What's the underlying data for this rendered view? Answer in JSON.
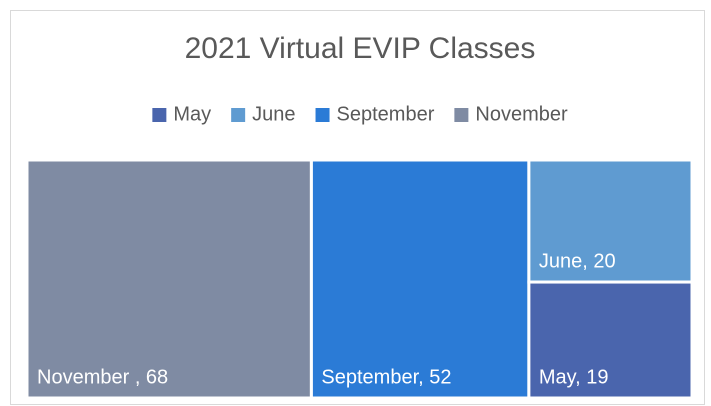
{
  "chart_data": {
    "type": "treemap",
    "title": "2021 Virtual EVIP Classes",
    "categories": [
      "May",
      "June",
      "September",
      "November"
    ],
    "values": [
      19,
      20,
      52,
      68
    ],
    "value_labels": [
      "May, 19",
      "June, 20",
      "September, 52",
      "November , 68"
    ],
    "colors": [
      "#4a65ad",
      "#5f9bd1",
      "#2b7bd6",
      "#7f8ba3"
    ],
    "legend": "top"
  }
}
